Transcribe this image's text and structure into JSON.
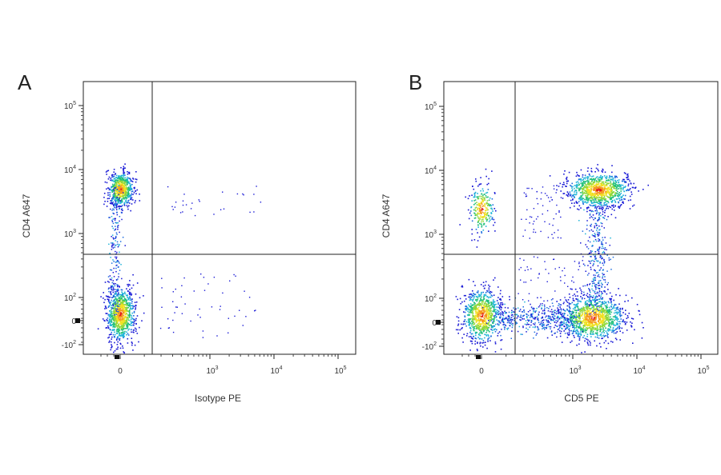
{
  "chart_data": [
    {
      "type": "scatter",
      "panel": "A",
      "xlabel": "Isotype PE",
      "ylabel": "CD4 A647",
      "scale": "biexponential",
      "x_ticks": [
        "0",
        "10^3",
        "10^4",
        "10^5"
      ],
      "y_ticks": [
        "-10^2",
        "0",
        "10^2",
        "10^3",
        "10^4",
        "10^5"
      ],
      "gate": {
        "x": 250,
        "y": 450
      },
      "populations": [
        {
          "name": "",
          "x_center": 0,
          "y_center": 5000,
          "count": 650
        },
        {
          "name": "",
          "x_center": 0,
          "y_center": 30,
          "count": 900
        },
        {
          "name": "",
          "x_center": 0,
          "y_center": 500,
          "count": 220
        }
      ]
    },
    {
      "type": "scatter",
      "panel": "B",
      "xlabel": "CD5 PE",
      "ylabel": "CD4 A647",
      "scale": "biexponential",
      "x_ticks": [
        "0",
        "10^3",
        "10^4",
        "10^5"
      ],
      "y_ticks": [
        "-10^2",
        "0",
        "10^2",
        "10^3",
        "10^4",
        "10^5"
      ],
      "gate": {
        "x": 250,
        "y": 450
      },
      "populations": [
        {
          "name": "",
          "x_center": 2500,
          "y_center": 5000,
          "count": 950
        },
        {
          "name": "",
          "x_center": 2000,
          "y_center": 20,
          "count": 1100
        },
        {
          "name": "",
          "x_center": 0,
          "y_center": 30,
          "count": 800
        },
        {
          "name": "",
          "x_center": 0,
          "y_center": 2500,
          "count": 250
        }
      ]
    }
  ],
  "panels": [
    {
      "letter": "A",
      "xlabel": "Isotype PE",
      "ylabel": "CD4 A647"
    },
    {
      "letter": "B",
      "xlabel": "CD5 PE",
      "ylabel": "CD4 A647"
    }
  ],
  "colors": {
    "low": "#1a1ad6",
    "mid": "#22c07a",
    "high": "#f0e020",
    "peak": "#e21b1b"
  }
}
